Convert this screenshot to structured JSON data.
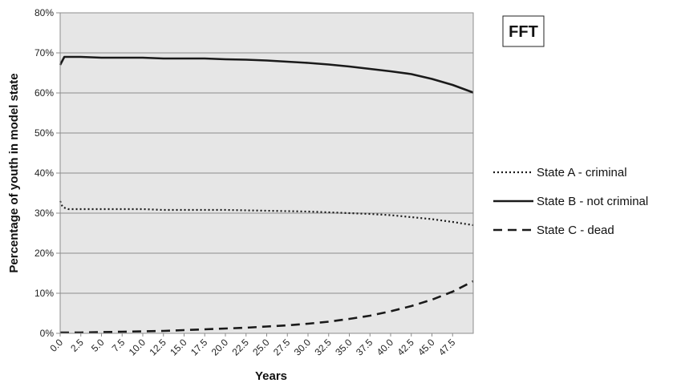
{
  "chart_data": {
    "type": "line",
    "title": "FFT",
    "xlabel": "Years",
    "ylabel": "Percentage of youth in model state",
    "xlim": [
      0,
      50
    ],
    "ylim": [
      0,
      80
    ],
    "x_tick_labels": [
      "0.0",
      "2.5",
      "5.0",
      "7.5",
      "10.0",
      "12.5",
      "15.0",
      "17.5",
      "20.0",
      "22.5",
      "25.0",
      "27.5",
      "30.0",
      "32.5",
      "35.0",
      "37.5",
      "40.0",
      "42.5",
      "45.0",
      "47.5"
    ],
    "y_tick_labels": [
      "0%",
      "10%",
      "20%",
      "30%",
      "40%",
      "50%",
      "60%",
      "70%",
      "80%"
    ],
    "grid": true,
    "legend_position": "right",
    "series": [
      {
        "name": "State A - criminal",
        "line_style": "dotted",
        "color": "#1a1a1a",
        "points": [
          [
            0,
            33
          ],
          [
            0.3,
            31.5
          ],
          [
            1,
            31
          ],
          [
            5,
            31
          ],
          [
            10,
            31
          ],
          [
            12.5,
            30.8
          ],
          [
            15,
            30.8
          ],
          [
            20,
            30.8
          ],
          [
            25,
            30.6
          ],
          [
            30,
            30.4
          ],
          [
            35,
            30.0
          ],
          [
            37.5,
            29.8
          ],
          [
            40,
            29.5
          ],
          [
            42.5,
            29.0
          ],
          [
            45,
            28.5
          ],
          [
            47.5,
            27.8
          ],
          [
            50,
            27.0
          ]
        ]
      },
      {
        "name": "State B - not criminal",
        "line_style": "solid",
        "color": "#1a1a1a",
        "points": [
          [
            0,
            67
          ],
          [
            0.5,
            69
          ],
          [
            2.5,
            69
          ],
          [
            5,
            68.8
          ],
          [
            10,
            68.8
          ],
          [
            12.5,
            68.6
          ],
          [
            15,
            68.6
          ],
          [
            17.5,
            68.6
          ],
          [
            20,
            68.4
          ],
          [
            22.5,
            68.3
          ],
          [
            25,
            68.1
          ],
          [
            27.5,
            67.8
          ],
          [
            30,
            67.5
          ],
          [
            32.5,
            67.1
          ],
          [
            35,
            66.6
          ],
          [
            37.5,
            66.0
          ],
          [
            40,
            65.4
          ],
          [
            42.5,
            64.7
          ],
          [
            45,
            63.5
          ],
          [
            47.5,
            62.0
          ],
          [
            50,
            60.1
          ]
        ]
      },
      {
        "name": "State C - dead",
        "line_style": "dashed",
        "color": "#1a1a1a",
        "points": [
          [
            0,
            0.2
          ],
          [
            2.5,
            0.2
          ],
          [
            5,
            0.3
          ],
          [
            7.5,
            0.4
          ],
          [
            10,
            0.5
          ],
          [
            12.5,
            0.6
          ],
          [
            15,
            0.8
          ],
          [
            17.5,
            1.0
          ],
          [
            20,
            1.2
          ],
          [
            22.5,
            1.4
          ],
          [
            25,
            1.7
          ],
          [
            27.5,
            2.0
          ],
          [
            30,
            2.4
          ],
          [
            32.5,
            2.9
          ],
          [
            35,
            3.6
          ],
          [
            37.5,
            4.4
          ],
          [
            40,
            5.5
          ],
          [
            42.5,
            6.8
          ],
          [
            45,
            8.4
          ],
          [
            47.5,
            10.4
          ],
          [
            50,
            13.0
          ]
        ]
      }
    ]
  }
}
